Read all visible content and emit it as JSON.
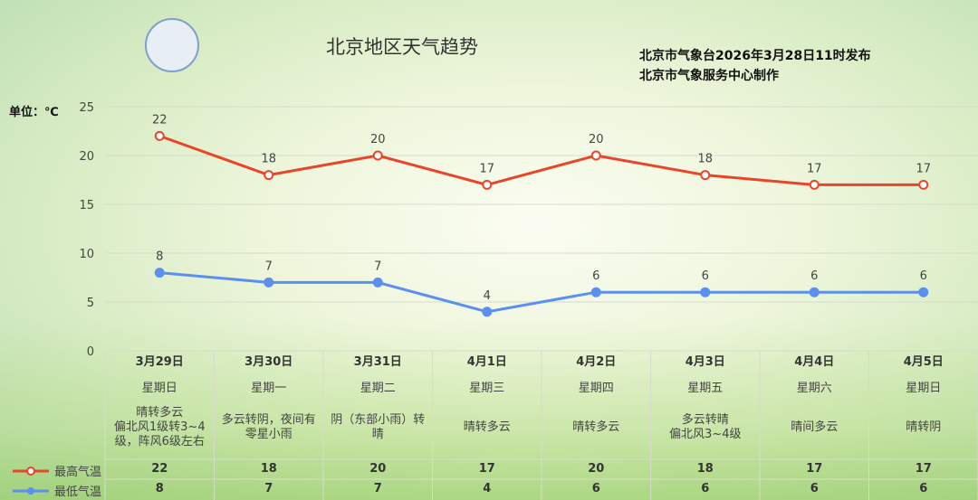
{
  "header": {
    "title": "北京地区天气趋势",
    "publisher_line1": "北京市气象台2026年3月28日11时发布",
    "publisher_line2": "北京市气象服务中心制作",
    "unit": "单位：℃"
  },
  "colors": {
    "high": "#e8452a",
    "low": "#5b8ff0"
  },
  "chart_data": {
    "type": "line",
    "categories": [
      "3月29日",
      "3月30日",
      "3月31日",
      "4月1日",
      "4月2日",
      "4月3日",
      "4月4日",
      "4月5日"
    ],
    "weekdays": [
      "星期日",
      "星期一",
      "星期二",
      "星期三",
      "星期四",
      "星期五",
      "星期六",
      "星期日"
    ],
    "weather": [
      "晴转多云\n偏北风1级转3~4级，阵风6级左右",
      "多云转阴，夜间有零星小雨",
      "阴（东部小雨）转晴",
      "晴转多云",
      "晴转多云",
      "多云转晴\n偏北风3~4级",
      "晴间多云",
      "晴转阴"
    ],
    "series": [
      {
        "name": "最高气温",
        "values": [
          22,
          18,
          20,
          17,
          20,
          18,
          17,
          17
        ]
      },
      {
        "name": "最低气温",
        "values": [
          8,
          7,
          7,
          4,
          6,
          6,
          6,
          6
        ]
      }
    ],
    "ylim": [
      0,
      25
    ],
    "yticks": [
      0,
      5,
      10,
      15,
      20,
      25
    ],
    "grid": true,
    "legend": "bottom-left"
  }
}
